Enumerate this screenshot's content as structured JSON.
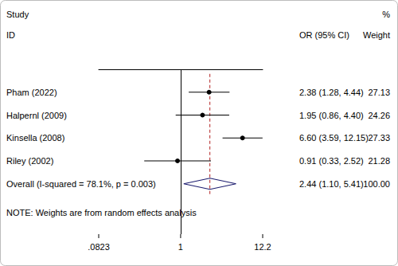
{
  "chart_data": {
    "type": "forest",
    "headers": {
      "study": [
        "Study",
        "ID"
      ],
      "estimate": "OR (95% CI)",
      "weight": [
        "%",
        "Weight"
      ]
    },
    "studies": {
      "names": [
        "Pham (2022)",
        "Halpernl (2009)",
        "Kinsella (2008)",
        "Riley (2002)"
      ],
      "values": [
        2.38,
        1.95,
        6.6,
        0.91
      ],
      "lower": [
        1.28,
        0.86,
        3.59,
        0.33
      ],
      "upper": [
        4.44,
        4.4,
        12.15,
        2.52
      ],
      "value_labels": [
        "2.38 (1.28, 4.44)",
        "1.95 (0.86, 4.40)",
        "6.60 (3.59, 12.15)",
        "0.91 (0.33, 2.52)"
      ],
      "weights": [
        27.13,
        24.26,
        27.33,
        21.28
      ],
      "color": "#000000",
      "marker": "circle"
    },
    "overall": {
      "name": "Overall (I-squared = 78.1%, p = 0.003)",
      "value": 2.44,
      "lower": 1.1,
      "upper": 5.41,
      "value_label": "2.44 (1.10, 5.41)",
      "weight": 100,
      "weight_label": "100.00",
      "color": "#1b1b6e",
      "marker": "diamond",
      "line_style": "dashed"
    },
    "null_line": 1,
    "note": "NOTE: Weights are from random effects analysis",
    "log": "x",
    "xlim": [
      0.0823,
      12.2
    ],
    "xticks": [
      {
        "value": 0.0823,
        "label": ".0823"
      },
      1,
      12.2
    ],
    "grid": false
  }
}
